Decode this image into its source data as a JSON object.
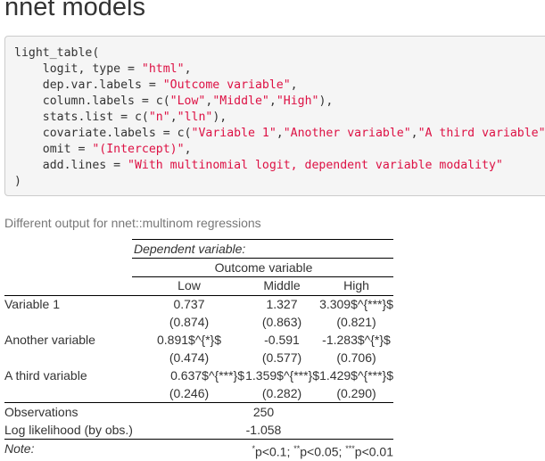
{
  "heading": "nnet models",
  "code": {
    "lines": [
      [
        {
          "t": "light_table("
        }
      ],
      [
        {
          "t": "    logit, type = "
        },
        {
          "t": "\"html\"",
          "s": 1
        },
        {
          "t": ","
        }
      ],
      [
        {
          "t": "    dep.var.labels = "
        },
        {
          "t": "\"Outcome variable\"",
          "s": 1
        },
        {
          "t": ","
        }
      ],
      [
        {
          "t": "    column.labels = c("
        },
        {
          "t": "\"Low\"",
          "s": 1
        },
        {
          "t": ","
        },
        {
          "t": "\"Middle\"",
          "s": 1
        },
        {
          "t": ","
        },
        {
          "t": "\"High\"",
          "s": 1
        },
        {
          "t": "),"
        }
      ],
      [
        {
          "t": "    stats.list = c("
        },
        {
          "t": "\"n\"",
          "s": 1
        },
        {
          "t": ","
        },
        {
          "t": "\"lln\"",
          "s": 1
        },
        {
          "t": "),"
        }
      ],
      [
        {
          "t": "    covariate.labels = c("
        },
        {
          "t": "\"Variable 1\"",
          "s": 1
        },
        {
          "t": ","
        },
        {
          "t": "\"Another variable\"",
          "s": 1
        },
        {
          "t": ","
        },
        {
          "t": "\"A third variable\"",
          "s": 1
        },
        {
          "t": "),"
        }
      ],
      [
        {
          "t": "    omit = "
        },
        {
          "t": "\"(Intercept)\"",
          "s": 1
        },
        {
          "t": ","
        }
      ],
      [
        {
          "t": "    add.lines = "
        },
        {
          "t": "\"With multinomial logit, dependent variable modality\"",
          "s": 1
        }
      ],
      [
        {
          "t": ")"
        }
      ]
    ]
  },
  "caption": "Different output for nnet::multinom regressions",
  "table": {
    "dep_var_header": "Dependent variable:",
    "dep_var_label": "Outcome variable",
    "columns": [
      "Low",
      "Middle",
      "High"
    ],
    "rows": [
      {
        "label": "Variable 1",
        "coef": [
          "0.737",
          "1.327",
          "3.309$^{***}$"
        ],
        "se": [
          "(0.874)",
          "(0.863)",
          "(0.821)"
        ]
      },
      {
        "label": "Another variable",
        "coef": [
          "0.891$^{*}$",
          "-0.591",
          "-1.283$^{*}$"
        ],
        "se": [
          "(0.474)",
          "(0.577)",
          "(0.706)"
        ]
      },
      {
        "label": "A third variable",
        "coef": [
          "0.637$^{***}$",
          "1.359$^{***}$",
          "1.429$^{***}$"
        ],
        "se": [
          "(0.246)",
          "(0.282)",
          "(0.290)"
        ]
      }
    ],
    "stats": [
      {
        "label": "Observations",
        "value": "250"
      },
      {
        "label": "Log likelihood (by obs.)",
        "value": "-1.058"
      }
    ],
    "note": {
      "label": "Note:",
      "parts": [
        {
          "sup": "*",
          "text": "p<0.1; "
        },
        {
          "sup": "**",
          "text": "p<0.05; "
        },
        {
          "sup": "***",
          "text": "p<0.01"
        }
      ]
    }
  }
}
